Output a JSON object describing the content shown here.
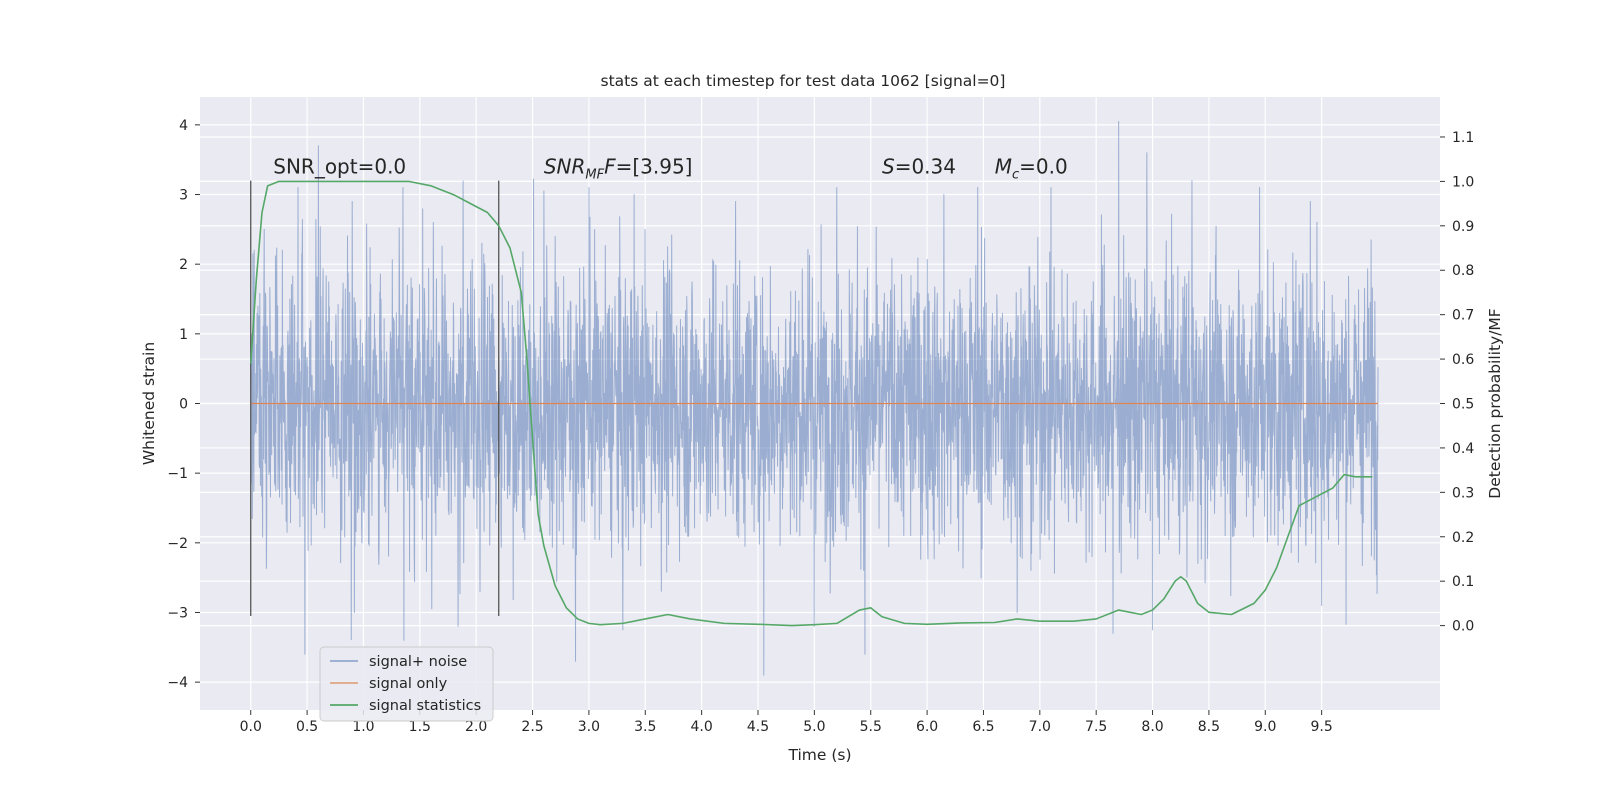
{
  "chart_data": {
    "type": "line",
    "title": "stats at each timestep for test data 1062 [signal=0]",
    "xlabel": "Time (s)",
    "ylabel": "Whitened strain",
    "y2label": "Detection probability/MF",
    "xlim": [
      -0.45,
      10.55
    ],
    "ylim": [
      -4.4,
      4.4
    ],
    "y2lim": [
      -0.19,
      1.19
    ],
    "x_ticks": [
      "0.0",
      "0.5",
      "1.0",
      "1.5",
      "2.0",
      "2.5",
      "3.0",
      "3.5",
      "4.0",
      "4.5",
      "5.0",
      "5.5",
      "6.0",
      "6.5",
      "7.0",
      "7.5",
      "8.0",
      "8.5",
      "9.0",
      "9.5"
    ],
    "y_ticks": [
      "4",
      "3",
      "2",
      "1",
      "0",
      "−1",
      "−2",
      "−3",
      "−4"
    ],
    "y2_ticks": [
      "1.1",
      "1.0",
      "0.9",
      "0.8",
      "0.7",
      "0.6",
      "0.5",
      "0.4",
      "0.3",
      "0.2",
      "0.1",
      "0.0"
    ],
    "grid": true,
    "legend_position": "lower-left",
    "colors": {
      "background": "#eaeaf2",
      "noise": "#4c72b0",
      "signal": "#dd8452",
      "stats": "#55a868",
      "vline": "#555555"
    },
    "annotations": [
      {
        "text": "SNR_opt=0.0",
        "x": 0.2
      },
      {
        "text_parts": [
          "SNR",
          "MF",
          "=[3.95]"
        ],
        "x": 2.6
      },
      {
        "text_parts": [
          "S",
          "=0.34"
        ],
        "x": 5.6
      },
      {
        "text_parts": [
          "M",
          "c",
          "=0.0"
        ],
        "x": 6.6
      }
    ],
    "annotation_y": 3.2,
    "vertical_lines": [
      0.0,
      2.2
    ],
    "vertical_line_range": [
      -3.05,
      3.2
    ],
    "series": [
      {
        "name": "signal+ noise",
        "type": "noise",
        "x_range": [
          0.0,
          10.0
        ],
        "description_std": 1.0,
        "peaks": [
          {
            "x": 0.03,
            "y": 2.2
          },
          {
            "x": 0.12,
            "y": 2.5
          },
          {
            "x": 0.28,
            "y": 2.2
          },
          {
            "x": 0.42,
            "y": 3.1
          },
          {
            "x": 0.6,
            "y": 3.7
          },
          {
            "x": 0.9,
            "y": 2.9
          },
          {
            "x": 1.35,
            "y": 3.1
          },
          {
            "x": 1.62,
            "y": 2.6
          },
          {
            "x": 2.05,
            "y": 2.3
          },
          {
            "x": 2.6,
            "y": 3.05
          },
          {
            "x": 3.0,
            "y": 3.1
          },
          {
            "x": 3.4,
            "y": 3.0
          },
          {
            "x": 4.3,
            "y": 2.9
          },
          {
            "x": 5.2,
            "y": 3.1
          },
          {
            "x": 5.45,
            "y": 3.2
          },
          {
            "x": 6.15,
            "y": 3.0
          },
          {
            "x": 6.45,
            "y": 3.1
          },
          {
            "x": 7.1,
            "y": 3.1
          },
          {
            "x": 7.7,
            "y": 4.05
          },
          {
            "x": 7.95,
            "y": 3.6
          },
          {
            "x": 8.35,
            "y": 3.2
          },
          {
            "x": 8.95,
            "y": 3.1
          },
          {
            "x": 9.4,
            "y": 2.9
          }
        ],
        "troughs": [
          {
            "x": 0.48,
            "y": -3.6
          },
          {
            "x": 0.92,
            "y": -3.0
          },
          {
            "x": 1.36,
            "y": -3.4
          },
          {
            "x": 1.84,
            "y": -3.2
          },
          {
            "x": 2.88,
            "y": -3.7
          },
          {
            "x": 3.3,
            "y": -3.25
          },
          {
            "x": 4.55,
            "y": -3.9
          },
          {
            "x": 5.0,
            "y": -3.2
          },
          {
            "x": 5.45,
            "y": -3.6
          },
          {
            "x": 6.8,
            "y": -3.0
          },
          {
            "x": 7.65,
            "y": -3.3
          },
          {
            "x": 8.0,
            "y": -3.25
          },
          {
            "x": 9.5,
            "y": -2.9
          }
        ]
      },
      {
        "name": "signal only",
        "x": [
          0.0,
          10.0
        ],
        "values": [
          0.0,
          0.0
        ]
      },
      {
        "name": "signal statistics",
        "axis": "right",
        "x": [
          0.0,
          0.05,
          0.1,
          0.15,
          0.25,
          0.4,
          0.6,
          1.0,
          1.4,
          1.6,
          1.8,
          1.95,
          2.1,
          2.2,
          2.3,
          2.4,
          2.45,
          2.5,
          2.55,
          2.6,
          2.7,
          2.8,
          2.9,
          3.0,
          3.1,
          3.3,
          3.5,
          3.7,
          3.9,
          4.2,
          4.5,
          4.8,
          5.0,
          5.2,
          5.4,
          5.5,
          5.6,
          5.8,
          6.0,
          6.3,
          6.6,
          6.8,
          7.0,
          7.3,
          7.5,
          7.7,
          7.9,
          8.0,
          8.1,
          8.2,
          8.25,
          8.3,
          8.4,
          8.5,
          8.7,
          8.9,
          9.0,
          9.1,
          9.2,
          9.3,
          9.45,
          9.6,
          9.7,
          9.8,
          9.95
        ],
        "values": [
          0.59,
          0.78,
          0.93,
          0.99,
          1.0,
          1.0,
          1.0,
          1.0,
          1.0,
          0.99,
          0.97,
          0.95,
          0.93,
          0.9,
          0.85,
          0.75,
          0.6,
          0.42,
          0.25,
          0.18,
          0.09,
          0.04,
          0.015,
          0.005,
          0.002,
          0.005,
          0.015,
          0.025,
          0.015,
          0.005,
          0.003,
          0.0,
          0.002,
          0.005,
          0.035,
          0.04,
          0.02,
          0.005,
          0.003,
          0.006,
          0.007,
          0.015,
          0.01,
          0.01,
          0.015,
          0.035,
          0.025,
          0.035,
          0.06,
          0.1,
          0.11,
          0.1,
          0.05,
          0.03,
          0.025,
          0.05,
          0.08,
          0.13,
          0.2,
          0.27,
          0.29,
          0.31,
          0.34,
          0.335,
          0.335
        ]
      }
    ]
  }
}
